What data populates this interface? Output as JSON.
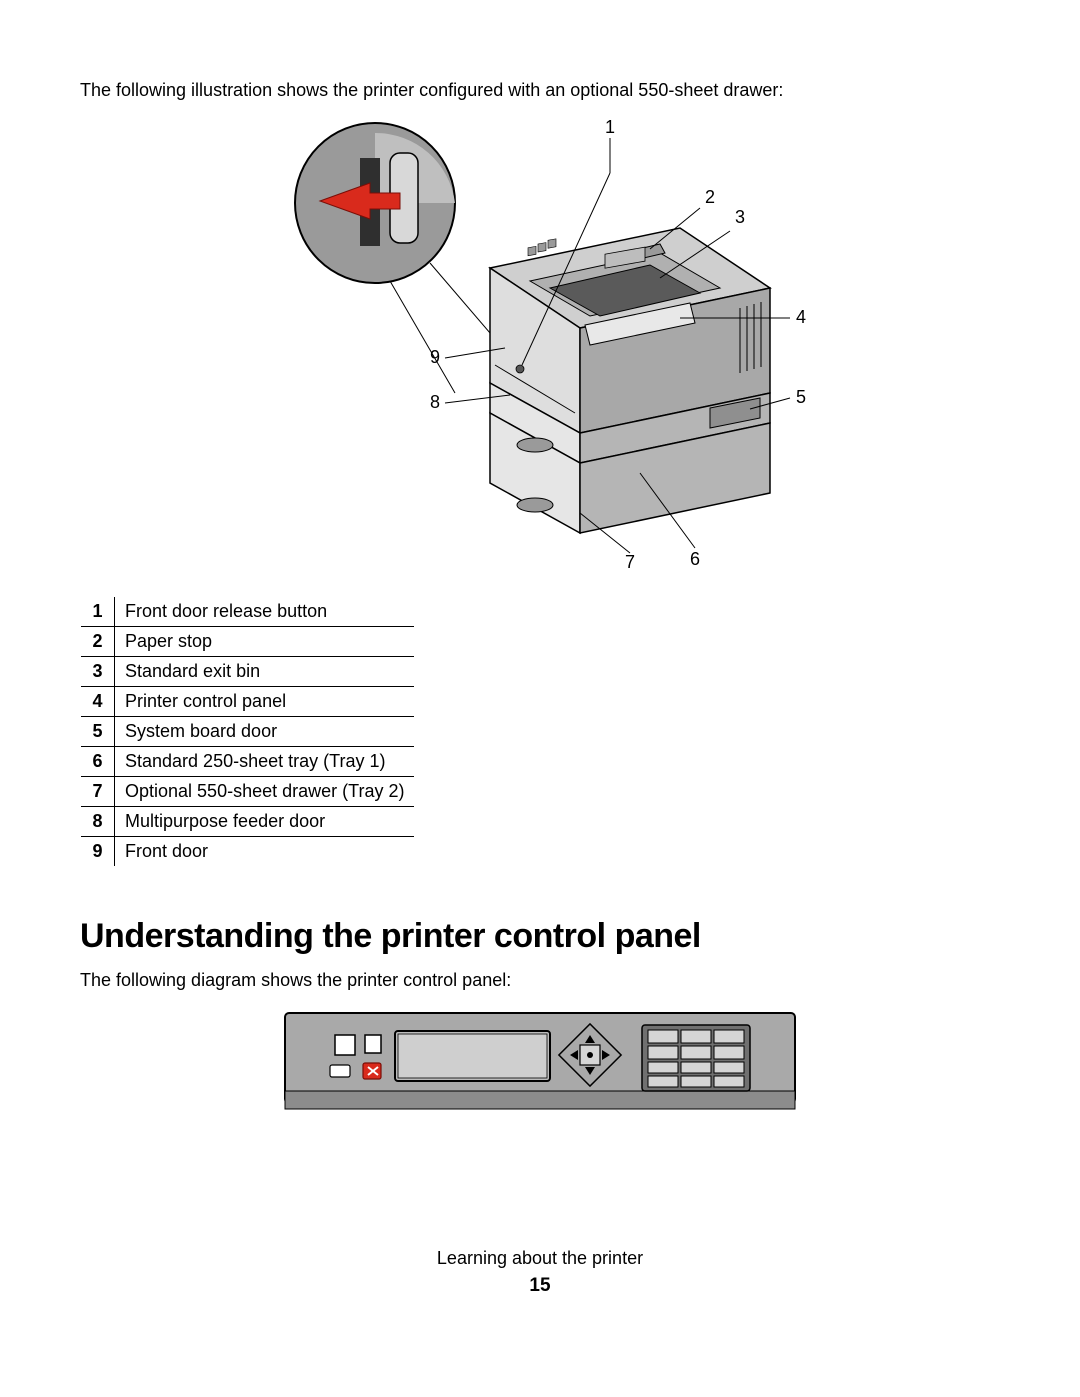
{
  "intro_text": "The following illustration shows the printer configured with an optional 550-sheet drawer:",
  "diagram": {
    "callouts": [
      "1",
      "2",
      "3",
      "4",
      "5",
      "6",
      "7",
      "8",
      "9"
    ],
    "callout_font_size": 18,
    "line_color": "#000000",
    "printer_body_fill": "#cfcfcf",
    "printer_body_stroke": "#000000",
    "printer_dark_fill": "#2f2f2f",
    "arrow_fill": "#d92a1c",
    "inset_circle_fill": "#9a9a9a",
    "inset_circle_stroke": "#000000",
    "bg": "#ffffff"
  },
  "parts_table": {
    "rows": [
      {
        "num": "1",
        "label": "Front door release button"
      },
      {
        "num": "2",
        "label": "Paper stop"
      },
      {
        "num": "3",
        "label": "Standard exit bin"
      },
      {
        "num": "4",
        "label": "Printer control panel"
      },
      {
        "num": "5",
        "label": "System board door"
      },
      {
        "num": "6",
        "label": "Standard 250-sheet tray (Tray 1)"
      },
      {
        "num": "7",
        "label": "Optional 550-sheet drawer (Tray 2)"
      },
      {
        "num": "8",
        "label": "Multipurpose feeder door"
      },
      {
        "num": "9",
        "label": "Front door"
      }
    ]
  },
  "section_heading": "Understanding the printer control panel",
  "section_intro": "The following diagram shows the printer control panel:",
  "control_panel": {
    "panel_fill": "#a9a9a9",
    "panel_stroke": "#000000",
    "screen_fill": "#bdbdbd",
    "button_fill": "#ffffff",
    "stop_button_fill": "#d92a1c",
    "keypad_fill": "#707070",
    "key_fill": "#d5d5d5"
  },
  "footer_text": "Learning about the printer",
  "page_number": "15"
}
